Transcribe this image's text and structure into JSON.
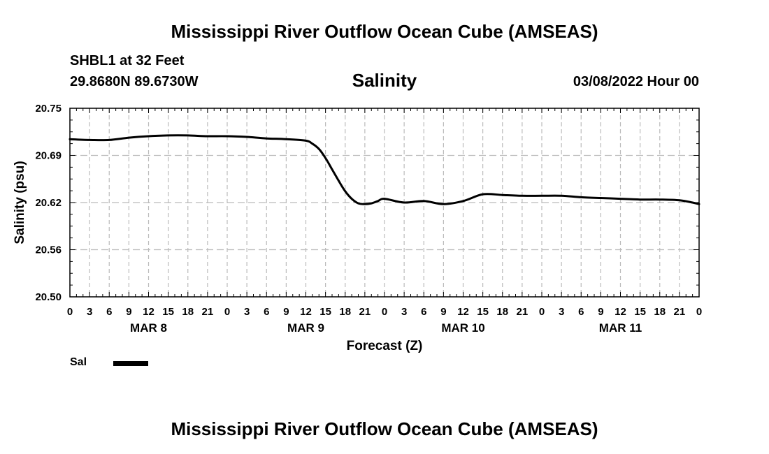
{
  "header": {
    "title": "Mississippi River Outflow Ocean Cube (AMSEAS)",
    "station": "SHBL1 at 32 Feet",
    "coords": "29.8680N  89.6730W",
    "chart_title": "Salinity",
    "datetime": "03/08/2022 Hour 00"
  },
  "footer": {
    "title": "Mississippi River Outflow Ocean Cube (AMSEAS)"
  },
  "chart_data": {
    "type": "line",
    "title": "Salinity",
    "xlabel": "Forecast (Z)",
    "ylabel": "Salinity (psu)",
    "ylim": [
      20.5,
      20.75
    ],
    "yticks": [
      "20.75",
      "20.69",
      "20.62",
      "20.56",
      "20.50"
    ],
    "xlim": [
      0,
      96
    ],
    "x_tick_labels": [
      "0",
      "3",
      "6",
      "9",
      "12",
      "15",
      "18",
      "21",
      "0",
      "3",
      "6",
      "9",
      "12",
      "15",
      "18",
      "21",
      "0",
      "3",
      "6",
      "9",
      "12",
      "15",
      "18",
      "21",
      "0",
      "3",
      "6",
      "9",
      "12",
      "15",
      "18",
      "21",
      "0"
    ],
    "day_labels": [
      {
        "label": "MAR 8",
        "hour": 12
      },
      {
        "label": "MAR 9",
        "hour": 36
      },
      {
        "label": "MAR 10",
        "hour": 60
      },
      {
        "label": "MAR 11",
        "hour": 84
      }
    ],
    "grid": true,
    "legend": "bottom-left",
    "series": [
      {
        "name": "Sal",
        "color": "#000000",
        "x": [
          0,
          3,
          6,
          9,
          12,
          15,
          18,
          21,
          24,
          27,
          30,
          33,
          36,
          37,
          38,
          39,
          40,
          41,
          42,
          43,
          44,
          45,
          46,
          47,
          48,
          51,
          54,
          57,
          60,
          63,
          66,
          69,
          72,
          75,
          78,
          81,
          84,
          87,
          90,
          93,
          95,
          96
        ],
        "y": [
          20.709,
          20.708,
          20.708,
          20.711,
          20.713,
          20.714,
          20.714,
          20.713,
          20.713,
          20.712,
          20.71,
          20.709,
          20.707,
          20.703,
          20.696,
          20.684,
          20.669,
          20.654,
          20.64,
          20.63,
          20.624,
          20.623,
          20.624,
          20.627,
          20.63,
          20.625,
          20.627,
          20.623,
          20.627,
          20.636,
          20.635,
          20.634,
          20.634,
          20.634,
          20.632,
          20.631,
          20.63,
          20.629,
          20.629,
          20.628,
          20.625,
          20.623
        ]
      }
    ]
  }
}
